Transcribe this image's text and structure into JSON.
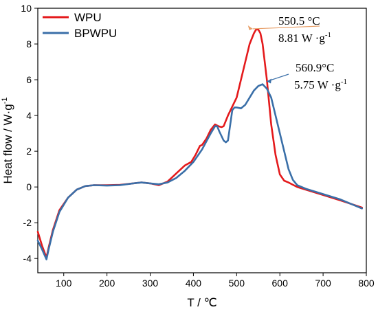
{
  "chart_data": {
    "type": "line",
    "xlabel": "T / ℃",
    "ylabel": "Heat flow / W·g",
    "ylabel_sup": "-1",
    "xlim": [
      40,
      800
    ],
    "ylim": [
      -4.8,
      10
    ],
    "xticks": [
      100,
      200,
      300,
      400,
      500,
      600,
      700,
      800
    ],
    "yticks": [
      -4,
      -2,
      0,
      2,
      4,
      6,
      8,
      10
    ],
    "grid": false,
    "legend": "top-left",
    "series": [
      {
        "name": "WPU",
        "color": "#e41a1c",
        "x": [
          40,
          50,
          60,
          65,
          75,
          90,
          110,
          130,
          150,
          170,
          200,
          230,
          260,
          280,
          300,
          320,
          340,
          360,
          380,
          395,
          405,
          415,
          420,
          430,
          440,
          450,
          458,
          465,
          470,
          480,
          490,
          500,
          510,
          520,
          530,
          540,
          545,
          550,
          555,
          560,
          570,
          580,
          590,
          600,
          610,
          620,
          640,
          660,
          700,
          740,
          790
        ],
        "y": [
          -2.5,
          -3.3,
          -3.95,
          -3.4,
          -2.4,
          -1.3,
          -0.6,
          -0.15,
          0.05,
          0.1,
          0.1,
          0.12,
          0.2,
          0.25,
          0.2,
          0.1,
          0.3,
          0.75,
          1.2,
          1.4,
          1.8,
          2.3,
          2.35,
          2.7,
          3.2,
          3.5,
          3.4,
          3.35,
          3.4,
          4.0,
          4.5,
          5.0,
          6.0,
          7.0,
          8.0,
          8.6,
          8.81,
          8.81,
          8.6,
          8.0,
          6.0,
          3.5,
          1.8,
          0.7,
          0.35,
          0.25,
          0.0,
          -0.15,
          -0.45,
          -0.75,
          -1.15
        ]
      },
      {
        "name": "BPWPU",
        "color": "#3a6fa8",
        "x": [
          40,
          50,
          60,
          65,
          75,
          90,
          110,
          130,
          150,
          170,
          200,
          230,
          260,
          280,
          300,
          320,
          340,
          360,
          380,
          400,
          420,
          430,
          440,
          450,
          455,
          460,
          470,
          475,
          480,
          490,
          495,
          500,
          510,
          520,
          530,
          540,
          550,
          560,
          570,
          580,
          590,
          600,
          610,
          620,
          630,
          640,
          660,
          700,
          740,
          790
        ],
        "y": [
          -3.0,
          -3.5,
          -4.05,
          -3.5,
          -2.5,
          -1.4,
          -0.6,
          -0.15,
          0.05,
          0.1,
          0.08,
          0.1,
          0.2,
          0.25,
          0.2,
          0.15,
          0.25,
          0.5,
          0.9,
          1.4,
          2.1,
          2.55,
          3.0,
          3.4,
          3.4,
          3.1,
          2.6,
          2.5,
          2.6,
          4.3,
          4.45,
          4.45,
          4.4,
          4.6,
          5.0,
          5.4,
          5.65,
          5.75,
          5.5,
          5.0,
          4.0,
          3.0,
          2.0,
          1.0,
          0.4,
          0.1,
          -0.1,
          -0.4,
          -0.7,
          -1.2
        ]
      }
    ],
    "annotations": [
      {
        "line1": "550.5 °C",
        "line2": "8.81 W ·g",
        "line2_sup": "-1",
        "target": [
          550,
          8.81
        ],
        "arrow_color": "#e8a06a"
      },
      {
        "line1": "560.9°C",
        "line2": "5.75 W ·g",
        "line2_sup": "-1",
        "target": [
          560,
          5.75
        ],
        "arrow_color": "#3a6fa8"
      }
    ]
  }
}
